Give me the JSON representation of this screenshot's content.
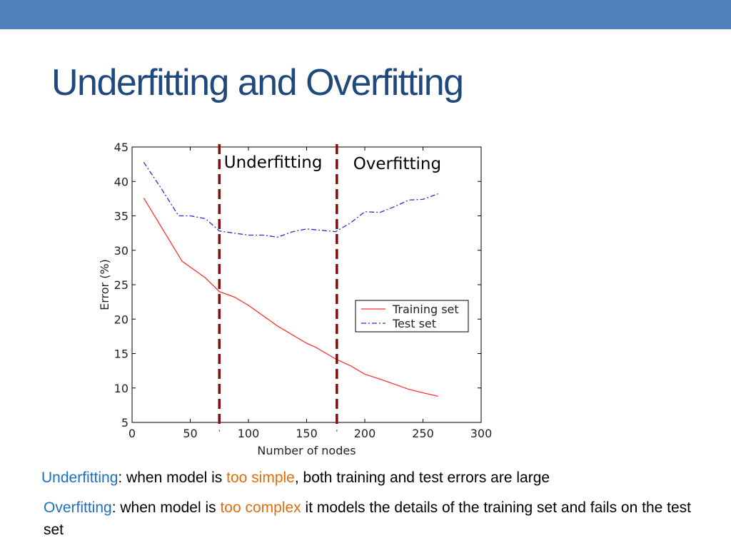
{
  "slide": {
    "title": "Underfitting and Overfitting"
  },
  "captions": {
    "underfitting": {
      "term": "Underfitting",
      "part1": ": when model is ",
      "highlight": "too simple",
      "part2": ", both training and test errors are large"
    },
    "overfitting": {
      "term": "Overfitting",
      "part1": ": when model is ",
      "highlight": "too complex",
      "part2": " it models the details of the training set and fails on the test set"
    }
  },
  "colors": {
    "top_bar": "#4f81bd",
    "title": "#1f497d",
    "term": "#1f6fc0",
    "highlight": "#e46c0a",
    "training": "#ff3333",
    "test": "#2233cc",
    "divider": "#7f1010"
  },
  "chart_data": {
    "type": "line",
    "xlabel": "Number of nodes",
    "ylabel": "Error (%)",
    "xlim": [
      0,
      300
    ],
    "ylim": [
      5,
      45
    ],
    "xticks": [
      0,
      50,
      100,
      150,
      200,
      250,
      300
    ],
    "yticks": [
      5,
      10,
      15,
      20,
      25,
      30,
      35,
      40,
      45
    ],
    "grid": false,
    "legend_position": "right",
    "series": [
      {
        "name": "Training set",
        "style": "solid",
        "color": "#ff3333",
        "x": [
          10,
          43,
          63,
          75,
          88,
          100,
          125,
          150,
          158,
          175,
          188,
          200,
          213,
          238,
          250,
          263
        ],
        "y": [
          37.6,
          28.4,
          26.0,
          24.0,
          23.2,
          22.0,
          19.0,
          16.5,
          15.9,
          14.2,
          13.2,
          12.0,
          11.3,
          9.8,
          9.3,
          8.8
        ]
      },
      {
        "name": "Test set",
        "style": "dashdot",
        "color": "#2233cc",
        "x": [
          10,
          25,
          40,
          50,
          63,
          75,
          100,
          113,
          125,
          138,
          150,
          163,
          175,
          188,
          200,
          213,
          225,
          238,
          250,
          263
        ],
        "y": [
          42.8,
          39.0,
          35.0,
          35.0,
          34.6,
          32.8,
          32.2,
          32.2,
          31.9,
          32.7,
          33.1,
          32.9,
          32.7,
          34.0,
          35.6,
          35.5,
          36.3,
          37.3,
          37.4,
          38.2
        ]
      }
    ],
    "vlines": [
      75,
      176
    ],
    "region_labels": [
      {
        "text": "Underfitting",
        "x": 79,
        "y": 42
      },
      {
        "text": "Overfitting",
        "x": 190,
        "y": 41.8
      }
    ]
  }
}
